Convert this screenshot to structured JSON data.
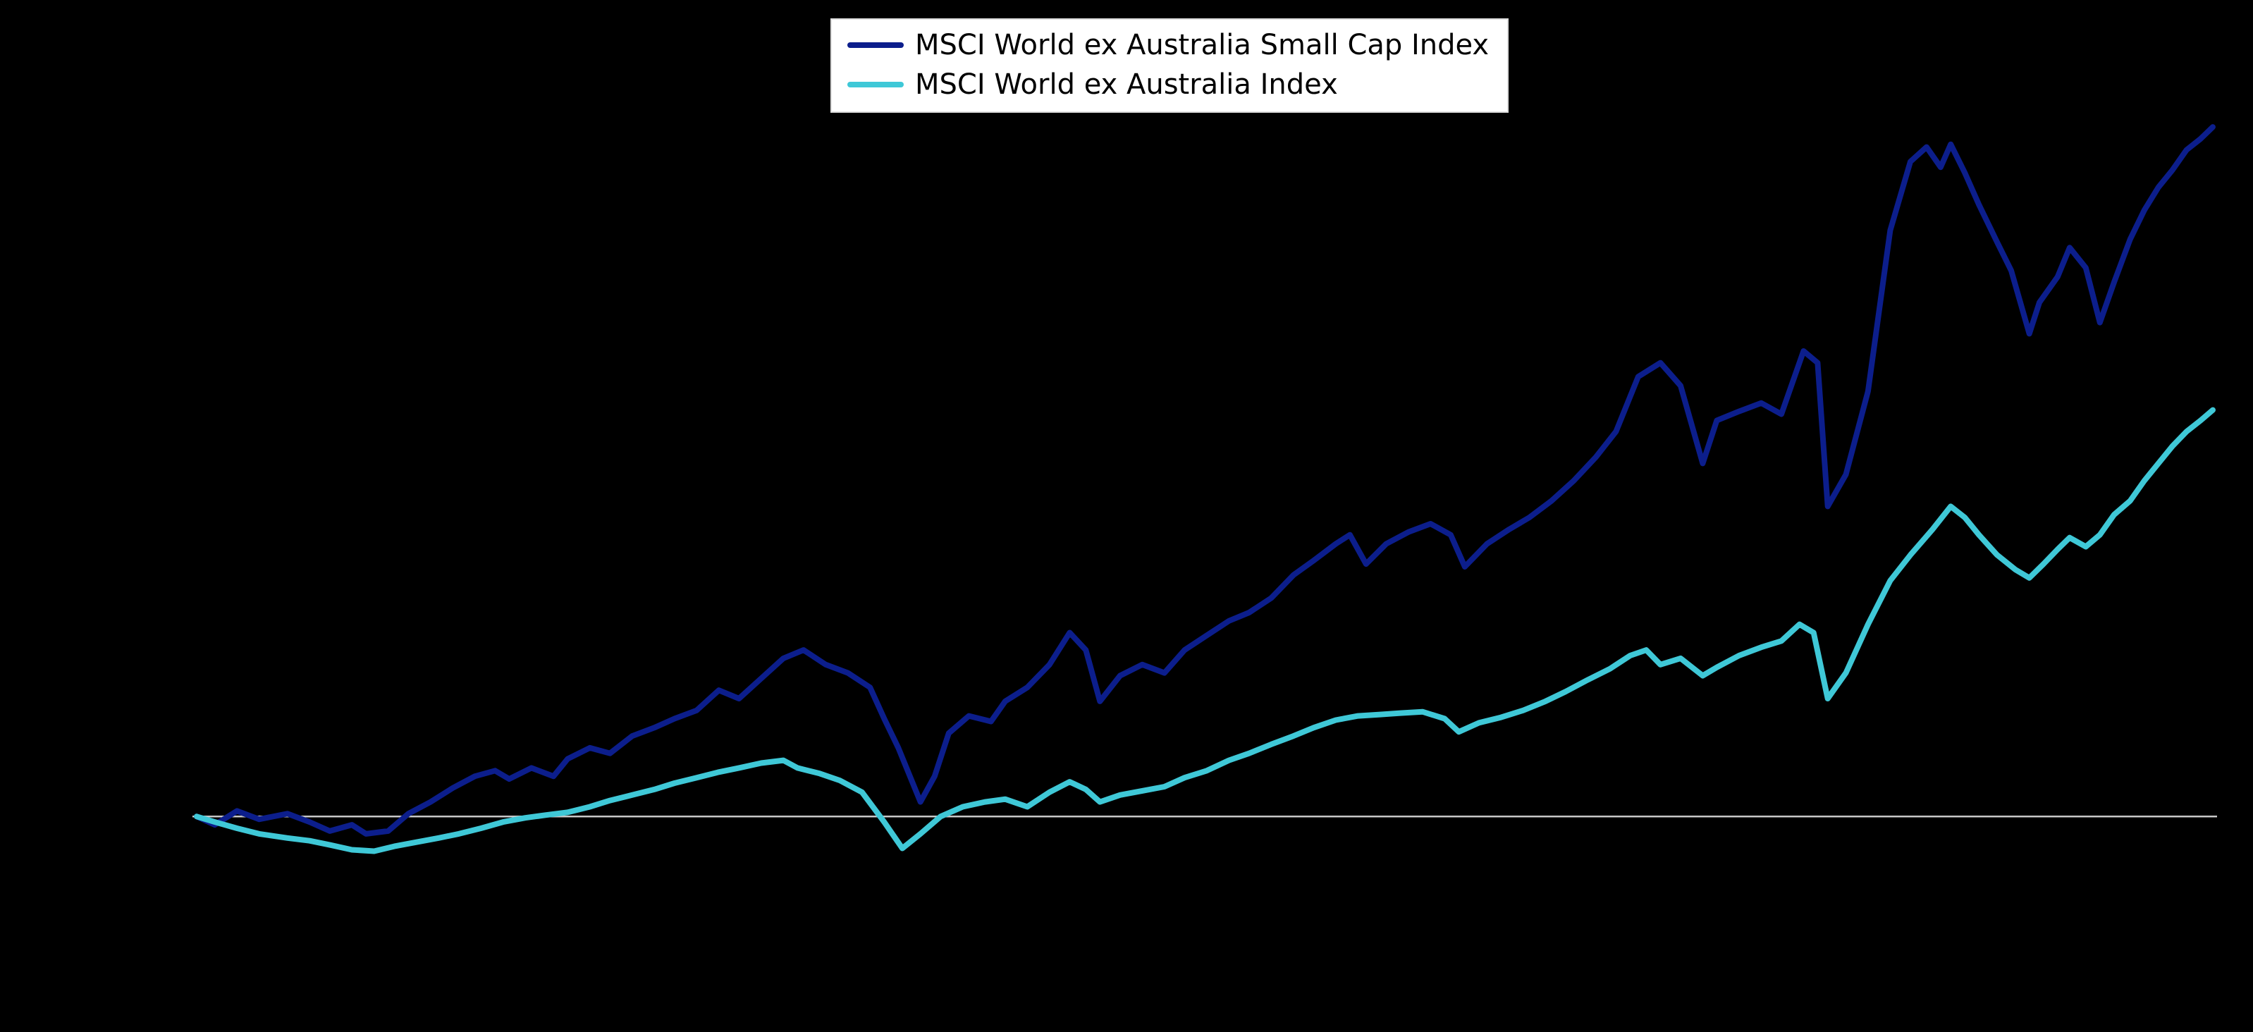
{
  "figure": {
    "background_color": "#000000"
  },
  "legend": {
    "background": "#ffffff",
    "border_color": "#dddddd",
    "text_color": "#000000",
    "entries": [
      {
        "label": "MSCI World ex Australia Small Cap Index",
        "color": "#0c1e8c"
      },
      {
        "label": "MSCI World ex Australia Index",
        "color": "#3fc8d7"
      }
    ]
  },
  "chart_data": {
    "type": "line",
    "title": "",
    "xlabel": "",
    "ylabel": "",
    "legend_position": "top-center",
    "grid": false,
    "axes_visible": false,
    "note": "Axis tick labels are not visible against the black background. x = relative time across the chart (0-100, left to right); y = cumulative index growth in normalized units where 0 is the starting baseline (thin grey line) and 100 is approximately the Small Cap series peak.",
    "xlim": [
      0,
      100
    ],
    "ylim": [
      -8,
      105
    ],
    "baseline": {
      "y": 0,
      "color": "#c8c8c8"
    },
    "series": [
      {
        "name": "MSCI World ex Australia Small Cap Index",
        "color": "#0c1e8c",
        "points": [
          [
            0,
            0
          ],
          [
            0.9,
            -1.2
          ],
          [
            2,
            0.8
          ],
          [
            3.1,
            -0.4
          ],
          [
            4.5,
            0.4
          ],
          [
            5.6,
            -0.8
          ],
          [
            6.6,
            -2.1
          ],
          [
            7.7,
            -1.2
          ],
          [
            8.4,
            -2.5
          ],
          [
            9.5,
            -2.1
          ],
          [
            10.5,
            0.4
          ],
          [
            11.6,
            2.1
          ],
          [
            12.7,
            4.1
          ],
          [
            13.8,
            5.8
          ],
          [
            14.8,
            6.6
          ],
          [
            15.5,
            5.4
          ],
          [
            16.6,
            7
          ],
          [
            17.7,
            5.8
          ],
          [
            18.4,
            8.3
          ],
          [
            19.5,
            9.9
          ],
          [
            20.5,
            9.1
          ],
          [
            21.6,
            11.6
          ],
          [
            22.7,
            12.8
          ],
          [
            23.7,
            14.1
          ],
          [
            24.8,
            15.3
          ],
          [
            25.9,
            18.2
          ],
          [
            26.9,
            17
          ],
          [
            28,
            19.9
          ],
          [
            29.1,
            22.8
          ],
          [
            30.1,
            24
          ],
          [
            31.2,
            21.9
          ],
          [
            32.3,
            20.7
          ],
          [
            33.4,
            18.6
          ],
          [
            34.1,
            14.1
          ],
          [
            34.8,
            9.9
          ],
          [
            35.9,
            2.1
          ],
          [
            36.6,
            5.8
          ],
          [
            37.3,
            12
          ],
          [
            38.3,
            14.5
          ],
          [
            39.4,
            13.7
          ],
          [
            40.1,
            16.6
          ],
          [
            41.2,
            18.6
          ],
          [
            42.3,
            21.9
          ],
          [
            43.3,
            26.5
          ],
          [
            44.1,
            24
          ],
          [
            44.8,
            16.6
          ],
          [
            45.8,
            20.3
          ],
          [
            46.9,
            21.9
          ],
          [
            48,
            20.7
          ],
          [
            49,
            24
          ],
          [
            50.1,
            26.1
          ],
          [
            51.2,
            28.2
          ],
          [
            52.2,
            29.4
          ],
          [
            53.3,
            31.5
          ],
          [
            54.4,
            34.8
          ],
          [
            55.4,
            36.9
          ],
          [
            56.5,
            39.3
          ],
          [
            57.2,
            40.6
          ],
          [
            58,
            36.4
          ],
          [
            59,
            39.3
          ],
          [
            60.1,
            41
          ],
          [
            61.2,
            42.2
          ],
          [
            62.2,
            40.6
          ],
          [
            62.9,
            36
          ],
          [
            64,
            39.3
          ],
          [
            65.1,
            41.4
          ],
          [
            66.1,
            43.1
          ],
          [
            67.2,
            45.5
          ],
          [
            68.3,
            48.4
          ],
          [
            69.4,
            51.8
          ],
          [
            70.4,
            55.5
          ],
          [
            71.5,
            63.4
          ],
          [
            72.6,
            65.4
          ],
          [
            73.6,
            62.1
          ],
          [
            74.7,
            50.9
          ],
          [
            75.4,
            57.1
          ],
          [
            76.5,
            58.4
          ],
          [
            77.6,
            59.6
          ],
          [
            78.6,
            58
          ],
          [
            79.7,
            67.1
          ],
          [
            80.4,
            65.4
          ],
          [
            80.9,
            44.7
          ],
          [
            81.8,
            49.3
          ],
          [
            82.9,
            61.3
          ],
          [
            84,
            84.5
          ],
          [
            85,
            94.4
          ],
          [
            85.8,
            96.5
          ],
          [
            86.5,
            93.6
          ],
          [
            87,
            96.9
          ],
          [
            87.7,
            92.8
          ],
          [
            88.4,
            88.2
          ],
          [
            89.3,
            82.8
          ],
          [
            90,
            78.7
          ],
          [
            90.9,
            69.6
          ],
          [
            91.4,
            74.1
          ],
          [
            92.3,
            77.8
          ],
          [
            92.9,
            82
          ],
          [
            93.7,
            79.1
          ],
          [
            94.4,
            71.2
          ],
          [
            95.1,
            77
          ],
          [
            95.9,
            83.2
          ],
          [
            96.6,
            87.4
          ],
          [
            97.3,
            90.7
          ],
          [
            98,
            93.2
          ],
          [
            98.7,
            96.1
          ],
          [
            99.4,
            97.7
          ],
          [
            100,
            99.4
          ]
        ]
      },
      {
        "name": "MSCI World ex Australia Index",
        "color": "#3fc8d7",
        "points": [
          [
            0,
            0
          ],
          [
            0.9,
            -0.8
          ],
          [
            2,
            -1.7
          ],
          [
            3.1,
            -2.5
          ],
          [
            4.5,
            -3.1
          ],
          [
            5.6,
            -3.5
          ],
          [
            6.6,
            -4.1
          ],
          [
            7.7,
            -4.8
          ],
          [
            8.8,
            -5
          ],
          [
            9.8,
            -4.3
          ],
          [
            10.9,
            -3.7
          ],
          [
            12,
            -3.1
          ],
          [
            13,
            -2.5
          ],
          [
            14.1,
            -1.7
          ],
          [
            15.2,
            -0.8
          ],
          [
            16.3,
            -0.2
          ],
          [
            17.3,
            0.2
          ],
          [
            18.4,
            0.6
          ],
          [
            19.5,
            1.4
          ],
          [
            20.5,
            2.3
          ],
          [
            21.6,
            3.1
          ],
          [
            22.7,
            3.9
          ],
          [
            23.7,
            4.8
          ],
          [
            24.8,
            5.6
          ],
          [
            25.9,
            6.4
          ],
          [
            26.9,
            7
          ],
          [
            28,
            7.7
          ],
          [
            29.1,
            8.1
          ],
          [
            29.8,
            7
          ],
          [
            30.9,
            6.2
          ],
          [
            31.9,
            5.2
          ],
          [
            33,
            3.5
          ],
          [
            34.1,
            -0.8
          ],
          [
            35,
            -4.6
          ],
          [
            35.9,
            -2.5
          ],
          [
            36.9,
            0
          ],
          [
            38,
            1.4
          ],
          [
            39.1,
            2.1
          ],
          [
            40.1,
            2.5
          ],
          [
            41.2,
            1.4
          ],
          [
            42.3,
            3.5
          ],
          [
            43.3,
            5
          ],
          [
            44.1,
            3.9
          ],
          [
            44.8,
            2.1
          ],
          [
            45.8,
            3.1
          ],
          [
            46.9,
            3.7
          ],
          [
            48,
            4.3
          ],
          [
            49,
            5.6
          ],
          [
            50.1,
            6.6
          ],
          [
            51.2,
            8.1
          ],
          [
            52.2,
            9.1
          ],
          [
            53.3,
            10.4
          ],
          [
            54.4,
            11.6
          ],
          [
            55.4,
            12.8
          ],
          [
            56.5,
            13.9
          ],
          [
            57.6,
            14.5
          ],
          [
            58.7,
            14.7
          ],
          [
            59.7,
            14.9
          ],
          [
            60.8,
            15.1
          ],
          [
            61.9,
            14.1
          ],
          [
            62.6,
            12.2
          ],
          [
            63.6,
            13.5
          ],
          [
            64.7,
            14.3
          ],
          [
            65.8,
            15.3
          ],
          [
            66.9,
            16.6
          ],
          [
            67.9,
            18
          ],
          [
            69,
            19.7
          ],
          [
            70.1,
            21.3
          ],
          [
            71.1,
            23.2
          ],
          [
            71.9,
            24
          ],
          [
            72.6,
            21.9
          ],
          [
            73.6,
            22.8
          ],
          [
            74.7,
            20.3
          ],
          [
            75.4,
            21.5
          ],
          [
            76.5,
            23.2
          ],
          [
            77.6,
            24.4
          ],
          [
            78.6,
            25.3
          ],
          [
            79.5,
            27.7
          ],
          [
            80.2,
            26.5
          ],
          [
            80.9,
            17
          ],
          [
            81.8,
            20.7
          ],
          [
            82.9,
            27.7
          ],
          [
            84,
            34
          ],
          [
            85,
            37.7
          ],
          [
            86.1,
            41.4
          ],
          [
            87,
            44.7
          ],
          [
            87.7,
            43.1
          ],
          [
            88.4,
            40.6
          ],
          [
            89.3,
            37.7
          ],
          [
            90.2,
            35.6
          ],
          [
            90.9,
            34.4
          ],
          [
            91.6,
            36.4
          ],
          [
            92.3,
            38.5
          ],
          [
            92.9,
            40.2
          ],
          [
            93.7,
            38.9
          ],
          [
            94.4,
            40.6
          ],
          [
            95.1,
            43.5
          ],
          [
            95.9,
            45.5
          ],
          [
            96.6,
            48.4
          ],
          [
            97.3,
            50.9
          ],
          [
            98,
            53.4
          ],
          [
            98.7,
            55.5
          ],
          [
            99.4,
            57.1
          ],
          [
            100,
            58.6
          ]
        ]
      }
    ]
  }
}
